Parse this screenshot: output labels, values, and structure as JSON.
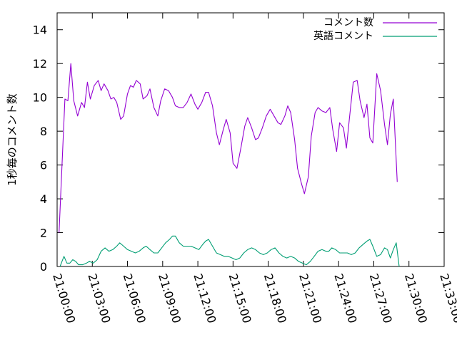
{
  "chart_data": {
    "type": "line",
    "title": "",
    "xlabel": "",
    "ylabel": "1秒毎のコメント数",
    "xlim": [
      "21:00:00",
      "21:33:00"
    ],
    "ylim": [
      0,
      15
    ],
    "yticks": [
      0,
      2,
      4,
      6,
      8,
      10,
      12,
      14
    ],
    "xticks": [
      "21:00:00",
      "21:03:00",
      "21:06:00",
      "21:09:00",
      "21:12:00",
      "21:15:00",
      "21:18:00",
      "21:21:00",
      "21:24:00",
      "21:27:00",
      "21:30:00",
      "21:33:00"
    ],
    "grid": false,
    "legend_position": "top-right",
    "series": [
      {
        "name": "コメント数",
        "color": "#9400d3",
        "points": [
          [
            "21:00:10",
            2.0
          ],
          [
            "21:00:40",
            9.9
          ],
          [
            "21:00:55",
            9.8
          ],
          [
            "21:01:10",
            12.0
          ],
          [
            "21:01:25",
            9.8
          ],
          [
            "21:01:45",
            8.9
          ],
          [
            "21:02:05",
            9.7
          ],
          [
            "21:02:20",
            9.4
          ],
          [
            "21:02:35",
            10.9
          ],
          [
            "21:02:50",
            9.9
          ],
          [
            "21:03:10",
            10.7
          ],
          [
            "21:03:30",
            11.0
          ],
          [
            "21:03:45",
            10.4
          ],
          [
            "21:04:00",
            10.8
          ],
          [
            "21:04:20",
            10.4
          ],
          [
            "21:04:35",
            9.9
          ],
          [
            "21:04:50",
            10.0
          ],
          [
            "21:05:05",
            9.7
          ],
          [
            "21:05:25",
            8.7
          ],
          [
            "21:05:40",
            8.9
          ],
          [
            "21:06:00",
            10.2
          ],
          [
            "21:06:15",
            10.7
          ],
          [
            "21:06:30",
            10.6
          ],
          [
            "21:06:45",
            11.0
          ],
          [
            "21:07:05",
            10.8
          ],
          [
            "21:07:20",
            9.9
          ],
          [
            "21:07:40",
            10.1
          ],
          [
            "21:07:55",
            10.5
          ],
          [
            "21:08:15",
            9.4
          ],
          [
            "21:08:35",
            8.9
          ],
          [
            "21:08:50",
            9.8
          ],
          [
            "21:09:10",
            10.5
          ],
          [
            "21:09:30",
            10.4
          ],
          [
            "21:09:50",
            10.0
          ],
          [
            "21:10:05",
            9.5
          ],
          [
            "21:10:25",
            9.4
          ],
          [
            "21:10:45",
            9.4
          ],
          [
            "21:11:05",
            9.7
          ],
          [
            "21:11:25",
            10.2
          ],
          [
            "21:11:45",
            9.6
          ],
          [
            "21:12:00",
            9.3
          ],
          [
            "21:12:20",
            9.7
          ],
          [
            "21:12:40",
            10.3
          ],
          [
            "21:12:55",
            10.3
          ],
          [
            "21:13:15",
            9.5
          ],
          [
            "21:13:35",
            7.9
          ],
          [
            "21:13:50",
            7.2
          ],
          [
            "21:14:10",
            8.1
          ],
          [
            "21:14:25",
            8.7
          ],
          [
            "21:14:45",
            7.9
          ],
          [
            "21:15:00",
            6.1
          ],
          [
            "21:15:20",
            5.8
          ],
          [
            "21:15:40",
            7.0
          ],
          [
            "21:16:00",
            8.3
          ],
          [
            "21:16:15",
            8.8
          ],
          [
            "21:16:35",
            8.2
          ],
          [
            "21:16:55",
            7.5
          ],
          [
            "21:17:10",
            7.6
          ],
          [
            "21:17:30",
            8.2
          ],
          [
            "21:17:50",
            8.9
          ],
          [
            "21:18:10",
            9.3
          ],
          [
            "21:18:30",
            8.9
          ],
          [
            "21:18:50",
            8.5
          ],
          [
            "21:19:05",
            8.4
          ],
          [
            "21:19:25",
            8.9
          ],
          [
            "21:19:40",
            9.5
          ],
          [
            "21:19:55",
            9.1
          ],
          [
            "21:20:15",
            7.5
          ],
          [
            "21:20:30",
            5.8
          ],
          [
            "21:20:50",
            4.9
          ],
          [
            "21:21:05",
            4.3
          ],
          [
            "21:21:25",
            5.3
          ],
          [
            "21:21:40",
            7.7
          ],
          [
            "21:22:00",
            9.1
          ],
          [
            "21:22:15",
            9.4
          ],
          [
            "21:22:35",
            9.2
          ],
          [
            "21:22:55",
            9.1
          ],
          [
            "21:23:15",
            9.4
          ],
          [
            "21:23:30",
            8.1
          ],
          [
            "21:23:50",
            6.8
          ],
          [
            "21:24:05",
            8.5
          ],
          [
            "21:24:25",
            8.2
          ],
          [
            "21:24:40",
            7.0
          ],
          [
            "21:24:55",
            8.7
          ],
          [
            "21:25:15",
            10.9
          ],
          [
            "21:25:35",
            11.0
          ],
          [
            "21:25:50",
            9.8
          ],
          [
            "21:26:10",
            8.8
          ],
          [
            "21:26:25",
            9.6
          ],
          [
            "21:26:40",
            7.6
          ],
          [
            "21:26:55",
            7.3
          ],
          [
            "21:27:15",
            11.4
          ],
          [
            "21:27:35",
            10.4
          ],
          [
            "21:27:55",
            8.4
          ],
          [
            "21:28:10",
            7.2
          ],
          [
            "21:28:25",
            9.0
          ],
          [
            "21:28:40",
            9.9
          ],
          [
            "21:29:00",
            5.0
          ]
        ]
      },
      {
        "name": "英語コメント",
        "color": "#009e73",
        "points": [
          [
            "21:00:15",
            0.0
          ],
          [
            "21:00:25",
            0.3
          ],
          [
            "21:00:35",
            0.6
          ],
          [
            "21:00:50",
            0.2
          ],
          [
            "21:01:05",
            0.2
          ],
          [
            "21:01:20",
            0.4
          ],
          [
            "21:01:35",
            0.3
          ],
          [
            "21:01:50",
            0.1
          ],
          [
            "21:02:10",
            0.1
          ],
          [
            "21:02:30",
            0.2
          ],
          [
            "21:02:45",
            0.3
          ],
          [
            "21:03:05",
            0.2
          ],
          [
            "21:03:25",
            0.4
          ],
          [
            "21:03:45",
            0.9
          ],
          [
            "21:04:05",
            1.1
          ],
          [
            "21:04:25",
            0.9
          ],
          [
            "21:04:45",
            1.0
          ],
          [
            "21:05:05",
            1.2
          ],
          [
            "21:05:20",
            1.4
          ],
          [
            "21:05:40",
            1.2
          ],
          [
            "21:06:00",
            1.0
          ],
          [
            "21:06:20",
            0.9
          ],
          [
            "21:06:40",
            0.8
          ],
          [
            "21:07:00",
            0.9
          ],
          [
            "21:07:20",
            1.1
          ],
          [
            "21:07:35",
            1.2
          ],
          [
            "21:07:55",
            1.0
          ],
          [
            "21:08:15",
            0.8
          ],
          [
            "21:08:35",
            0.8
          ],
          [
            "21:08:55",
            1.1
          ],
          [
            "21:09:15",
            1.4
          ],
          [
            "21:09:35",
            1.6
          ],
          [
            "21:09:50",
            1.8
          ],
          [
            "21:10:05",
            1.8
          ],
          [
            "21:10:25",
            1.4
          ],
          [
            "21:10:45",
            1.2
          ],
          [
            "21:11:05",
            1.2
          ],
          [
            "21:11:25",
            1.2
          ],
          [
            "21:11:45",
            1.1
          ],
          [
            "21:12:05",
            1.0
          ],
          [
            "21:12:25",
            1.3
          ],
          [
            "21:12:40",
            1.5
          ],
          [
            "21:12:55",
            1.6
          ],
          [
            "21:13:15",
            1.2
          ],
          [
            "21:13:35",
            0.8
          ],
          [
            "21:13:55",
            0.7
          ],
          [
            "21:14:15",
            0.6
          ],
          [
            "21:14:35",
            0.6
          ],
          [
            "21:14:55",
            0.5
          ],
          [
            "21:15:15",
            0.4
          ],
          [
            "21:15:35",
            0.5
          ],
          [
            "21:15:55",
            0.8
          ],
          [
            "21:16:15",
            1.0
          ],
          [
            "21:16:35",
            1.1
          ],
          [
            "21:16:55",
            1.0
          ],
          [
            "21:17:15",
            0.8
          ],
          [
            "21:17:35",
            0.7
          ],
          [
            "21:17:55",
            0.8
          ],
          [
            "21:18:15",
            1.0
          ],
          [
            "21:18:35",
            1.1
          ],
          [
            "21:18:55",
            0.8
          ],
          [
            "21:19:15",
            0.6
          ],
          [
            "21:19:35",
            0.5
          ],
          [
            "21:19:55",
            0.6
          ],
          [
            "21:20:15",
            0.5
          ],
          [
            "21:20:35",
            0.3
          ],
          [
            "21:20:55",
            0.2
          ],
          [
            "21:21:15",
            0.1
          ],
          [
            "21:21:35",
            0.3
          ],
          [
            "21:21:55",
            0.6
          ],
          [
            "21:22:15",
            0.9
          ],
          [
            "21:22:35",
            1.0
          ],
          [
            "21:22:55",
            0.9
          ],
          [
            "21:23:10",
            0.9
          ],
          [
            "21:23:25",
            1.1
          ],
          [
            "21:23:45",
            1.0
          ],
          [
            "21:24:05",
            0.8
          ],
          [
            "21:24:25",
            0.8
          ],
          [
            "21:24:45",
            0.8
          ],
          [
            "21:25:05",
            0.7
          ],
          [
            "21:25:25",
            0.8
          ],
          [
            "21:25:45",
            1.1
          ],
          [
            "21:26:05",
            1.3
          ],
          [
            "21:26:25",
            1.5
          ],
          [
            "21:26:40",
            1.6
          ],
          [
            "21:26:55",
            1.2
          ],
          [
            "21:27:15",
            0.6
          ],
          [
            "21:27:35",
            0.7
          ],
          [
            "21:27:55",
            1.1
          ],
          [
            "21:28:10",
            1.0
          ],
          [
            "21:28:25",
            0.5
          ],
          [
            "21:28:40",
            1.0
          ],
          [
            "21:28:55",
            1.4
          ],
          [
            "21:29:10",
            0.0
          ]
        ]
      }
    ]
  }
}
